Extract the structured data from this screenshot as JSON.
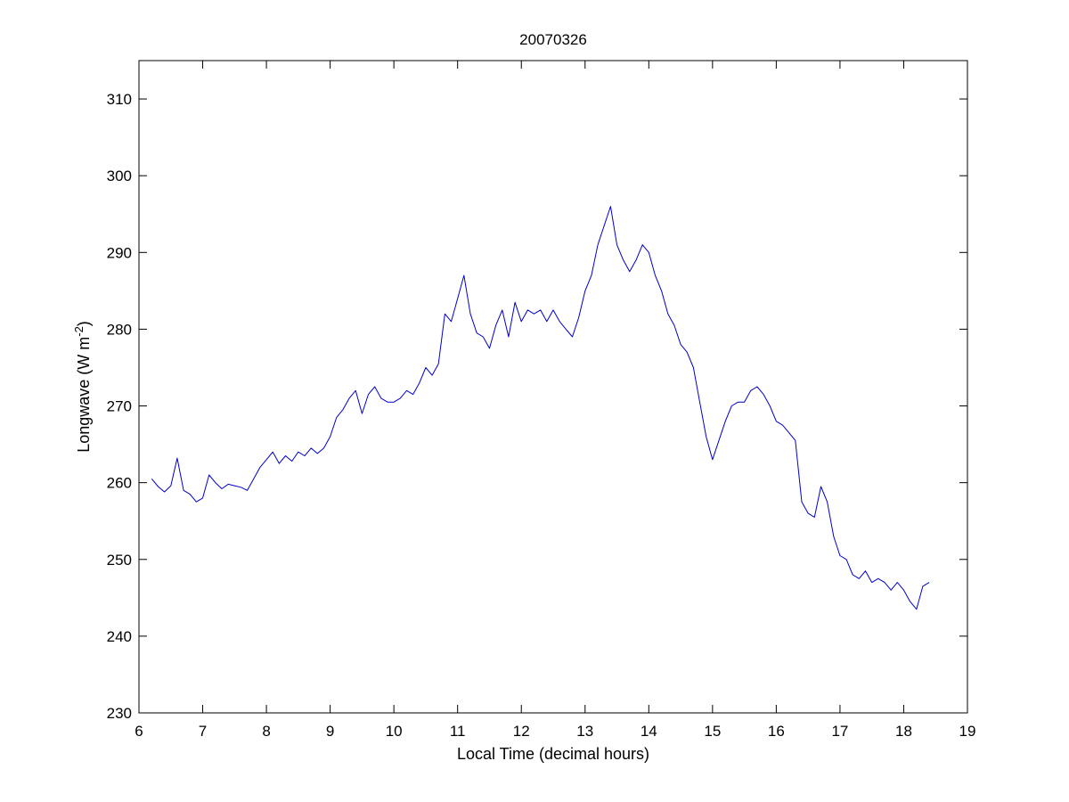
{
  "chart_data": {
    "type": "line",
    "title": "20070326",
    "xlabel": "Local Time (decimal hours)",
    "ylabel_main": "Longwave (W m",
    "ylabel_sup": "-2",
    "ylabel_close": ")",
    "xlim": [
      6,
      19
    ],
    "ylim": [
      230,
      315
    ],
    "xticks": [
      "6",
      "7",
      "8",
      "9",
      "10",
      "11",
      "12",
      "13",
      "14",
      "15",
      "16",
      "17",
      "18",
      "19"
    ],
    "yticks": [
      "230",
      "240",
      "250",
      "260",
      "270",
      "280",
      "290",
      "300",
      "310"
    ],
    "grid": false,
    "line_color": "#0000cc",
    "series": [
      {
        "x": [
          6.2,
          6.3,
          6.4,
          6.5,
          6.6,
          6.7,
          6.8,
          6.9,
          7.0,
          7.1,
          7.2,
          7.3,
          7.4,
          7.5,
          7.6,
          7.7,
          7.8,
          7.9,
          8.0,
          8.1,
          8.2,
          8.3,
          8.4,
          8.5,
          8.6,
          8.7,
          8.8,
          8.9,
          9.0,
          9.1,
          9.2,
          9.3,
          9.4,
          9.5,
          9.6,
          9.7,
          9.8,
          9.9,
          10.0,
          10.1,
          10.2,
          10.3,
          10.4,
          10.5,
          10.6,
          10.7,
          10.8,
          10.9,
          11.0,
          11.1,
          11.2,
          11.3,
          11.4,
          11.5,
          11.6,
          11.7,
          11.8,
          11.9,
          12.0,
          12.1,
          12.2,
          12.3,
          12.4,
          12.5,
          12.6,
          12.7,
          12.8,
          12.9,
          13.0,
          13.1,
          13.2,
          13.3,
          13.4,
          13.5,
          13.6,
          13.7,
          13.8,
          13.9,
          14.0,
          14.1,
          14.2,
          14.3,
          14.4,
          14.5,
          14.6,
          14.7,
          14.8,
          14.9,
          15.0,
          15.1,
          15.2,
          15.3,
          15.4,
          15.5,
          15.6,
          15.7,
          15.8,
          15.9,
          16.0,
          16.1,
          16.2,
          16.3,
          16.4,
          16.5,
          16.6,
          16.7,
          16.8,
          16.9,
          17.0,
          17.1,
          17.2,
          17.3,
          17.4,
          17.5,
          17.6,
          17.7,
          17.8,
          17.9,
          18.0,
          18.1,
          18.2,
          18.3,
          18.4
        ],
        "y": [
          260.5,
          259.5,
          258.8,
          259.6,
          263.2,
          259.0,
          258.5,
          257.5,
          258.0,
          261.0,
          260.0,
          259.2,
          259.8,
          259.6,
          259.4,
          259.0,
          260.5,
          262.0,
          263.0,
          264.0,
          262.5,
          263.5,
          262.8,
          264.0,
          263.5,
          264.5,
          263.8,
          264.5,
          266.0,
          268.5,
          269.5,
          271.0,
          272.0,
          269.0,
          271.5,
          272.5,
          271.0,
          270.5,
          270.5,
          271.0,
          272.0,
          271.5,
          273.0,
          275.0,
          274.0,
          275.5,
          282.0,
          281.0,
          284.0,
          287.0,
          282.0,
          279.5,
          279.0,
          277.5,
          280.5,
          282.5,
          279.0,
          283.5,
          281.0,
          282.5,
          282.0,
          282.5,
          281.0,
          282.5,
          281.0,
          280.0,
          279.0,
          281.5,
          285.0,
          287.0,
          291.0,
          293.5,
          296.0,
          291.0,
          289.0,
          287.5,
          289.0,
          291.0,
          290.0,
          287.0,
          285.0,
          282.0,
          280.5,
          278.0,
          277.0,
          275.0,
          270.5,
          266.0,
          263.0,
          265.5,
          268.0,
          270.0,
          270.5,
          270.5,
          272.0,
          272.5,
          271.5,
          270.0,
          268.0,
          267.5,
          266.5,
          265.5,
          257.5,
          256.0,
          255.5,
          259.5,
          257.5,
          253.0,
          250.5,
          250.0,
          248.0,
          247.5,
          248.5,
          247.0,
          247.5,
          247.0,
          246.0,
          247.0,
          246.0,
          244.5,
          243.5,
          246.5,
          247.0
        ]
      }
    ]
  }
}
